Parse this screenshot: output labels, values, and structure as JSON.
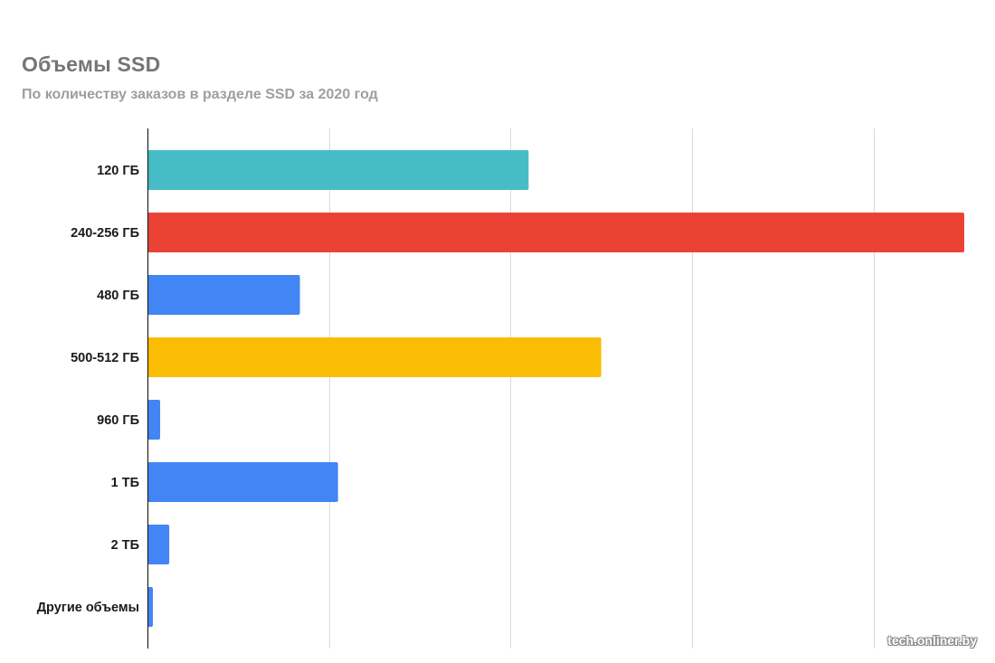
{
  "chart_data": {
    "type": "bar",
    "orientation": "horizontal",
    "title": "Объемы SSD",
    "subtitle": "По количеству заказов в разделе SSD за 2020 год",
    "categories": [
      "120 ГБ",
      "240-256 ГБ",
      "480 ГБ",
      "500-512 ГБ",
      "960 ГБ",
      "1 ТБ",
      "2 ТБ",
      "Другие объемы"
    ],
    "values": [
      21.0,
      45.0,
      8.4,
      25.0,
      0.7,
      10.5,
      1.2,
      0.3
    ],
    "colors": [
      "#46bdc6",
      "#ea4335",
      "#4285f4",
      "#fbbc04",
      "#4285f4",
      "#4285f4",
      "#4285f4",
      "#4285f4"
    ],
    "xlim": [
      0,
      45
    ],
    "gridlines": [
      10,
      20,
      30,
      40
    ],
    "tick_labels_shown": false,
    "grid": true,
    "legend": "none"
  },
  "watermark": "tech.onliner.by"
}
